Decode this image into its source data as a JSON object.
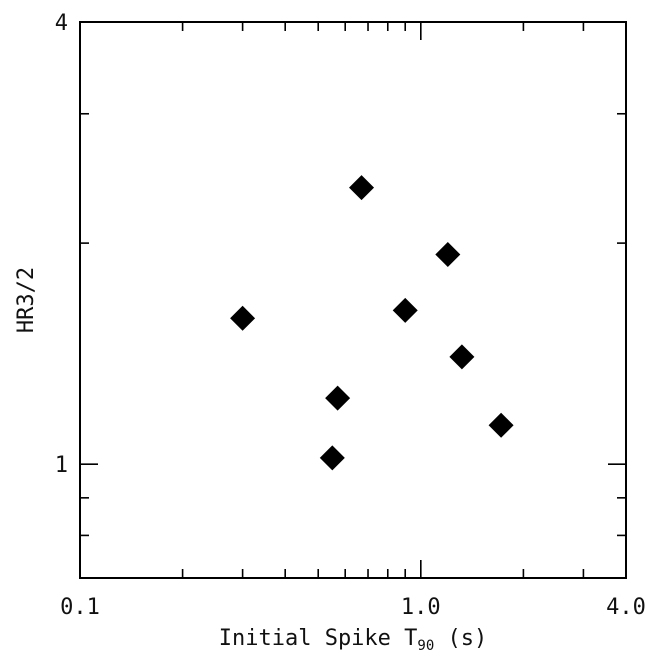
{
  "chart_data": {
    "type": "scatter",
    "title": "",
    "xlabel_main": "Initial Spike T",
    "xlabel_sub": "90",
    "xlabel_unit": " (s)",
    "ylabel": "HR3/2",
    "xscale": "log",
    "yscale": "log",
    "xlim": [
      0.1,
      4.0
    ],
    "ylim": [
      0.7,
      4.0
    ],
    "x_ticks": [
      {
        "value": 0.1,
        "label": "0.1"
      },
      {
        "value": 1.0,
        "label": "1.0"
      },
      {
        "value": 4.0,
        "label": "4.0"
      }
    ],
    "y_ticks": [
      {
        "value": 1,
        "label": "1"
      },
      {
        "value": 4,
        "label": "4"
      }
    ],
    "grid": false,
    "marker": "diamond",
    "marker_color": "#000000",
    "series": [
      {
        "points": [
          {
            "x": 0.3,
            "y": 1.58
          },
          {
            "x": 0.55,
            "y": 1.02
          },
          {
            "x": 0.57,
            "y": 1.23
          },
          {
            "x": 0.67,
            "y": 2.38
          },
          {
            "x": 0.9,
            "y": 1.62
          },
          {
            "x": 1.2,
            "y": 1.93
          },
          {
            "x": 1.32,
            "y": 1.4
          },
          {
            "x": 1.72,
            "y": 1.13
          }
        ]
      }
    ]
  }
}
